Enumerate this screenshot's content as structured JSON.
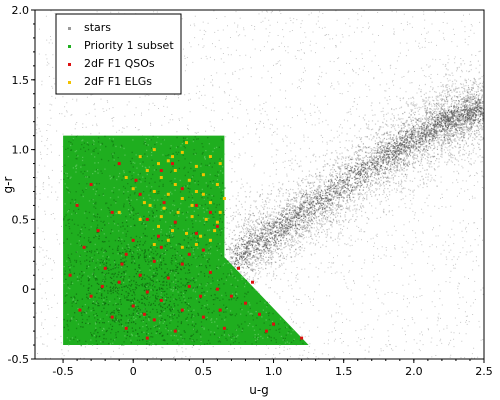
{
  "chart_data": {
    "type": "scatter",
    "xlabel": "u-g",
    "ylabel": "g-r",
    "xlim": [
      -0.7,
      2.5
    ],
    "ylim": [
      -0.5,
      2.0
    ],
    "xticks": [
      -0.5,
      0.0,
      0.5,
      1.0,
      1.5,
      2.0,
      2.5
    ],
    "xtick_labels": [
      "-0.5",
      "0",
      "0.5",
      "1.0",
      "1.5",
      "2.0",
      "2.5"
    ],
    "yticks": [
      -0.5,
      0.0,
      0.5,
      1.0,
      1.5,
      2.0
    ],
    "ytick_labels": [
      "-0.5",
      "0",
      "0.5",
      "1.0",
      "1.5",
      "2.0"
    ],
    "legend_placement": "top-left",
    "series": [
      {
        "name": "stars",
        "color": "#9a9a9a",
        "description": "dense grey stellar locus",
        "region": {
          "cloud_x": [
            -0.7,
            2.5
          ],
          "cloud_y": [
            -0.5,
            2.0
          ],
          "locus": [
            [
              0.7,
              0.2
            ],
            [
              1.2,
              0.55
            ],
            [
              1.8,
              0.95
            ],
            [
              2.2,
              1.2
            ],
            [
              2.5,
              1.3
            ]
          ]
        }
      },
      {
        "name": "Priority 1 subset",
        "color": "#1fae1f",
        "region_polygon": [
          [
            -0.5,
            1.1
          ],
          [
            0.65,
            1.1
          ],
          [
            0.65,
            0.23
          ],
          [
            1.25,
            -0.4
          ],
          [
            -0.5,
            -0.4
          ]
        ]
      },
      {
        "name": "2dF F1 QSOs",
        "color": "#dd1010",
        "points": [
          [
            -0.1,
            0.9
          ],
          [
            0.2,
            0.85
          ],
          [
            -0.3,
            0.75
          ],
          [
            0.05,
            0.68
          ],
          [
            0.35,
            0.72
          ],
          [
            -0.15,
            0.55
          ],
          [
            0.1,
            0.5
          ],
          [
            0.3,
            0.48
          ],
          [
            -0.25,
            0.42
          ],
          [
            0.45,
            0.4
          ],
          [
            0.0,
            0.35
          ],
          [
            0.2,
            0.3
          ],
          [
            -0.05,
            0.25
          ],
          [
            0.5,
            0.28
          ],
          [
            0.15,
            0.2
          ],
          [
            0.35,
            0.18
          ],
          [
            -0.2,
            0.15
          ],
          [
            0.05,
            0.1
          ],
          [
            0.25,
            0.08
          ],
          [
            0.55,
            0.12
          ],
          [
            -0.1,
            0.05
          ],
          [
            0.4,
            0.02
          ],
          [
            0.1,
            -0.02
          ],
          [
            0.6,
            0.0
          ],
          [
            -0.3,
            -0.05
          ],
          [
            0.2,
            -0.08
          ],
          [
            0.7,
            -0.05
          ],
          [
            0.0,
            -0.12
          ],
          [
            0.35,
            -0.15
          ],
          [
            0.8,
            -0.1
          ],
          [
            -0.15,
            -0.2
          ],
          [
            0.15,
            -0.22
          ],
          [
            0.5,
            -0.2
          ],
          [
            0.9,
            -0.18
          ],
          [
            -0.05,
            -0.28
          ],
          [
            0.3,
            -0.3
          ],
          [
            1.0,
            -0.25
          ],
          [
            0.65,
            -0.28
          ],
          [
            0.1,
            -0.35
          ],
          [
            1.2,
            -0.35
          ],
          [
            -0.4,
            0.6
          ],
          [
            -0.35,
            0.3
          ],
          [
            0.6,
            0.45
          ],
          [
            0.45,
            0.6
          ],
          [
            -0.45,
            0.1
          ],
          [
            0.75,
            0.15
          ],
          [
            0.85,
            0.05
          ],
          [
            0.02,
            0.78
          ],
          [
            0.22,
            0.62
          ],
          [
            -0.22,
            0.02
          ],
          [
            0.48,
            -0.05
          ],
          [
            0.18,
            0.38
          ],
          [
            -0.08,
            0.18
          ],
          [
            0.62,
            -0.15
          ],
          [
            0.28,
            0.9
          ],
          [
            -0.38,
            -0.15
          ],
          [
            0.95,
            -0.3
          ],
          [
            0.4,
            0.25
          ],
          [
            0.08,
            -0.18
          ],
          [
            0.55,
            0.55
          ]
        ]
      },
      {
        "name": "2dF F1 ELGs",
        "color": "#f2c200",
        "points": [
          [
            0.05,
            0.95
          ],
          [
            0.15,
            1.0
          ],
          [
            0.25,
            0.92
          ],
          [
            0.35,
            0.98
          ],
          [
            0.45,
            0.88
          ],
          [
            0.55,
            0.95
          ],
          [
            0.1,
            0.85
          ],
          [
            0.2,
            0.8
          ],
          [
            0.3,
            0.85
          ],
          [
            0.4,
            0.78
          ],
          [
            0.5,
            0.82
          ],
          [
            0.6,
            0.75
          ],
          [
            0.0,
            0.72
          ],
          [
            0.15,
            0.7
          ],
          [
            0.25,
            0.68
          ],
          [
            0.35,
            0.65
          ],
          [
            0.45,
            0.7
          ],
          [
            0.55,
            0.62
          ],
          [
            0.12,
            0.6
          ],
          [
            0.22,
            0.58
          ],
          [
            0.32,
            0.55
          ],
          [
            0.42,
            0.52
          ],
          [
            0.52,
            0.5
          ],
          [
            0.62,
            0.55
          ],
          [
            0.05,
            0.5
          ],
          [
            0.18,
            0.45
          ],
          [
            0.28,
            0.42
          ],
          [
            0.38,
            0.4
          ],
          [
            0.48,
            0.38
          ],
          [
            0.58,
            0.42
          ],
          [
            0.25,
            0.35
          ],
          [
            0.35,
            0.3
          ],
          [
            0.45,
            0.32
          ],
          [
            0.15,
            0.32
          ],
          [
            0.55,
            0.35
          ],
          [
            0.65,
            0.65
          ],
          [
            -0.05,
            0.8
          ],
          [
            0.38,
            1.05
          ],
          [
            0.62,
            0.9
          ],
          [
            0.08,
            0.62
          ],
          [
            0.5,
            0.68
          ],
          [
            0.3,
            0.75
          ],
          [
            -0.1,
            0.55
          ],
          [
            0.2,
            0.52
          ],
          [
            0.6,
            0.48
          ],
          [
            0.42,
            0.6
          ],
          [
            0.28,
            0.95
          ],
          [
            0.18,
            0.9
          ]
        ]
      }
    ]
  }
}
